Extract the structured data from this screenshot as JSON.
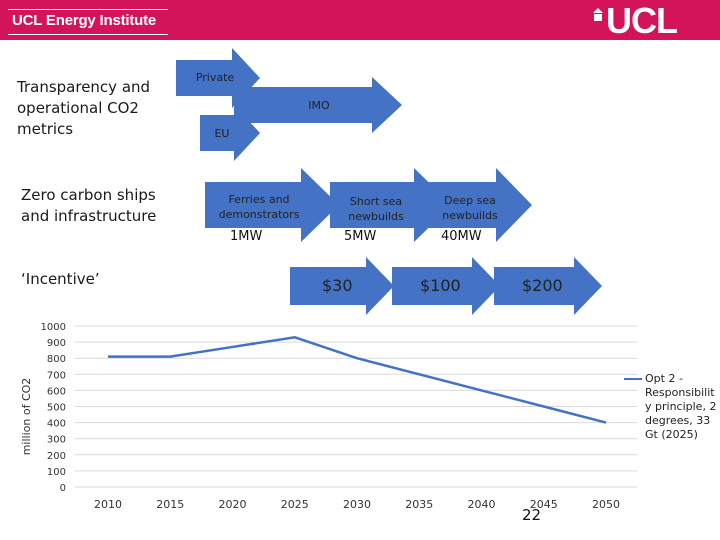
{
  "header": {
    "institute": "UCL Energy Institute",
    "logo": "UCL",
    "bg_color": "#d4145a"
  },
  "rows": {
    "transparency": "Transparency and operational CO2 metrics",
    "zero_carbon": "Zero carbon ships and infrastructure",
    "incentive": "‘Incentive’"
  },
  "arrows": {
    "private": "Private",
    "imo": "IMO",
    "eu": "EU",
    "ferries": "Ferries and demonstrators",
    "short_sea": "Short sea newbuilds",
    "deep_sea": "Deep sea newbuilds"
  },
  "mw": {
    "a": "1MW",
    "b": "5MW",
    "c": "40MW"
  },
  "prices": {
    "a": "$30",
    "b": "$100",
    "c": "$200"
  },
  "page_number": "22",
  "arrow_color": "#4472c4",
  "chart_data": {
    "type": "line",
    "ylabel": "million of CO2",
    "xlabel": "",
    "ylim": [
      0,
      1000
    ],
    "yticks": [
      0,
      100,
      200,
      300,
      400,
      500,
      600,
      700,
      800,
      900,
      1000
    ],
    "x": [
      2010,
      2015,
      2020,
      2025,
      2030,
      2035,
      2040,
      2045,
      2050
    ],
    "series": [
      {
        "name": "Opt 2 - Responsibility principle, 2 degrees, 33 Gt (2025)",
        "name_display": "Opt 2 - Responsibilit y principle, 2 degrees, 33 Gt (2025)",
        "color": "#4472c4",
        "values": [
          810,
          810,
          870,
          930,
          800,
          700,
          600,
          500,
          400
        ]
      }
    ],
    "grid": true,
    "legend": "right"
  }
}
